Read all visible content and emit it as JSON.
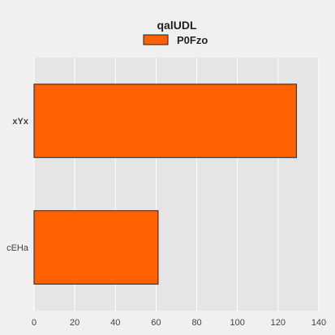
{
  "chart_data": {
    "type": "bar",
    "orientation": "horizontal",
    "title": "qalUDL",
    "xlabel": "",
    "ylabel": "",
    "categories": [
      "xYx",
      "cEHa"
    ],
    "series": [
      {
        "name": "P0Fzo",
        "values": [
          129,
          61
        ]
      }
    ],
    "xlim": [
      0,
      140
    ],
    "xticks": [
      0,
      20,
      40,
      60,
      80,
      100,
      120,
      140
    ],
    "grid": true,
    "legend_position": "top-center",
    "bar_color": "#ff6000",
    "bar_edge_color": "#222222",
    "plot_background": "#e5e5e5",
    "grid_color": "#ffffff"
  }
}
